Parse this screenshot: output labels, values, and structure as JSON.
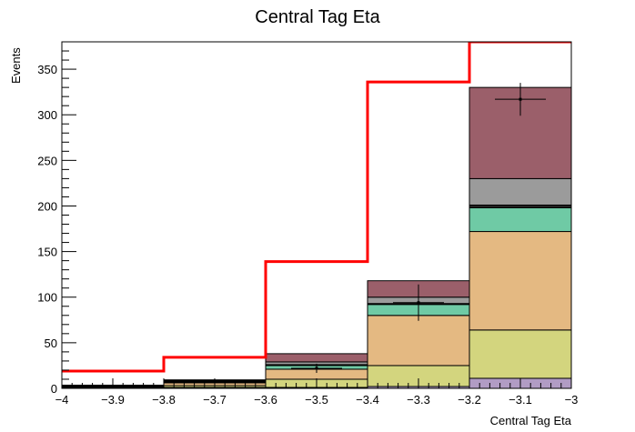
{
  "chart_data": {
    "type": "bar",
    "title": "Central Tag Eta",
    "xlabel": "Central Tag Eta",
    "ylabel": "Events",
    "xlim": [
      -4,
      -3
    ],
    "ylim": [
      0,
      380
    ],
    "bins": [
      -4.0,
      -3.8,
      -3.6,
      -3.4,
      -3.2,
      -3.0
    ],
    "x_ticks": [
      -4,
      -3.9,
      -3.8,
      -3.7,
      -3.6,
      -3.5,
      -3.4,
      -3.3,
      -3.2,
      -3.1,
      -3
    ],
    "x_tick_labels": [
      "−4",
      "−3.9",
      "−3.8",
      "−3.7",
      "−3.6",
      "−3.5",
      "−3.4",
      "−3.3",
      "−3.2",
      "−3.1",
      "−3"
    ],
    "y_ticks": [
      0,
      50,
      100,
      150,
      200,
      250,
      300,
      350
    ],
    "y_tick_labels": [
      "0",
      "50",
      "100",
      "150",
      "200",
      "250",
      "300",
      "350"
    ],
    "stacked_series": [
      {
        "color": "#b19cc4",
        "values": [
          0.5,
          1,
          1,
          2,
          11
        ]
      },
      {
        "color": "#d3d57e",
        "values": [
          1,
          2,
          9,
          23,
          53
        ]
      },
      {
        "color": "#e4b982",
        "values": [
          1,
          3,
          11,
          55,
          108
        ]
      },
      {
        "color": "#6fcaa5",
        "values": [
          0.5,
          1,
          4,
          12,
          26
        ]
      },
      {
        "color": "#222222",
        "values": [
          0,
          0.3,
          1,
          1,
          3
        ]
      },
      {
        "color": "#9b9b9b",
        "values": [
          0.3,
          1,
          3,
          7,
          29
        ]
      },
      {
        "color": "#9b5f6a",
        "values": [
          0.2,
          1,
          9,
          18,
          100
        ]
      }
    ],
    "data_points": [
      {
        "x": -3.5,
        "y": 22,
        "err": 5
      },
      {
        "x": -3.3,
        "y": 94,
        "err": 20
      },
      {
        "x": -3.1,
        "y": 317,
        "err": 18
      }
    ],
    "red_line": {
      "color": "#ff0000",
      "values": [
        19,
        34,
        139,
        336,
        380
      ]
    },
    "grid": false
  }
}
